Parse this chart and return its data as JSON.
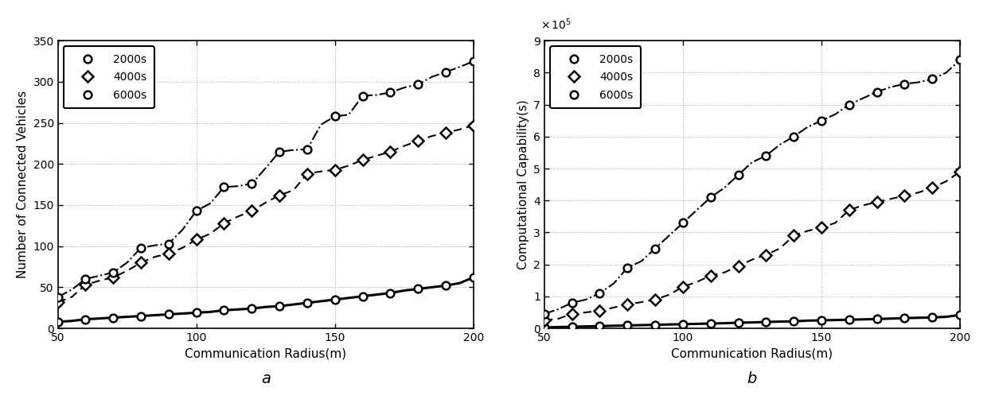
{
  "x_dense": [
    50,
    55,
    60,
    65,
    70,
    75,
    80,
    85,
    90,
    95,
    100,
    105,
    110,
    115,
    120,
    125,
    130,
    135,
    140,
    145,
    150,
    155,
    160,
    165,
    170,
    175,
    180,
    185,
    190,
    195,
    200
  ],
  "x_markers": [
    50,
    60,
    70,
    80,
    90,
    100,
    110,
    120,
    130,
    140,
    150,
    160,
    170,
    180,
    190,
    200
  ],
  "left_2000s_dense": [
    8,
    9,
    11,
    12,
    13,
    14,
    15,
    16,
    17,
    18,
    19,
    20,
    22,
    23,
    24,
    26,
    27,
    29,
    31,
    33,
    35,
    37,
    39,
    41,
    43,
    46,
    48,
    50,
    52,
    55,
    62
  ],
  "left_4000s_dense": [
    32,
    38,
    53,
    58,
    62,
    70,
    80,
    87,
    91,
    98,
    108,
    115,
    128,
    136,
    143,
    153,
    162,
    168,
    188,
    191,
    193,
    198,
    205,
    210,
    215,
    222,
    228,
    234,
    238,
    242,
    247
  ],
  "left_6000s_dense": [
    38,
    47,
    60,
    64,
    68,
    80,
    98,
    101,
    103,
    120,
    143,
    152,
    172,
    173,
    176,
    195,
    215,
    217,
    218,
    248,
    258,
    260,
    283,
    284,
    287,
    293,
    297,
    306,
    312,
    318,
    325
  ],
  "left_2000s_mk": [
    8,
    11,
    13,
    15,
    17,
    19,
    22,
    24,
    27,
    31,
    35,
    39,
    43,
    48,
    52,
    62
  ],
  "left_4000s_mk": [
    32,
    53,
    62,
    80,
    91,
    108,
    128,
    143,
    162,
    188,
    193,
    205,
    215,
    228,
    238,
    247
  ],
  "left_6000s_mk": [
    38,
    60,
    68,
    98,
    103,
    143,
    172,
    176,
    215,
    218,
    258,
    283,
    287,
    297,
    312,
    325
  ],
  "right_2000s_dense": [
    3000,
    4000,
    5000,
    6000,
    7000,
    8000,
    9000,
    10000,
    11000,
    12000,
    13000,
    14000,
    15000,
    16000,
    17500,
    18500,
    20000,
    21000,
    22000,
    24000,
    25000,
    26000,
    27000,
    28000,
    29000,
    30500,
    32000,
    33000,
    34000,
    36000,
    42000
  ],
  "right_4000s_dense": [
    25000,
    30000,
    45000,
    50000,
    55000,
    65000,
    75000,
    82000,
    90000,
    105000,
    130000,
    145000,
    165000,
    175000,
    195000,
    215000,
    230000,
    250000,
    290000,
    305000,
    315000,
    330000,
    370000,
    385000,
    395000,
    405000,
    415000,
    425000,
    440000,
    460000,
    490000
  ],
  "right_6000s_dense": [
    45000,
    60000,
    80000,
    90000,
    110000,
    140000,
    190000,
    210000,
    250000,
    290000,
    330000,
    370000,
    410000,
    440000,
    480000,
    520000,
    540000,
    575000,
    600000,
    630000,
    650000,
    670000,
    700000,
    720000,
    740000,
    755000,
    765000,
    770000,
    780000,
    800000,
    840000
  ],
  "right_2000s_mk": [
    3000,
    5000,
    7000,
    9000,
    11000,
    13000,
    15000,
    17500,
    20000,
    22000,
    25000,
    27000,
    29000,
    32000,
    34000,
    42000
  ],
  "right_4000s_mk": [
    25000,
    45000,
    55000,
    75000,
    90000,
    130000,
    165000,
    195000,
    230000,
    290000,
    315000,
    370000,
    395000,
    415000,
    440000,
    490000
  ],
  "right_6000s_mk": [
    45000,
    80000,
    110000,
    190000,
    250000,
    330000,
    410000,
    480000,
    540000,
    600000,
    650000,
    700000,
    740000,
    765000,
    780000,
    840000
  ],
  "xlabel": "Communication Radius(m)",
  "left_ylabel": "Number of Connected Vehicles",
  "right_ylabel": "Computational Capability(s)",
  "label_2000s": "2000s",
  "label_4000s": "4000s",
  "label_6000s": "6000s",
  "label_a": "a",
  "label_b": "b",
  "xlim": [
    50,
    200
  ],
  "left_ylim": [
    0,
    350
  ],
  "right_ylim": [
    0,
    900000
  ],
  "left_yticks": [
    0,
    50,
    100,
    150,
    200,
    250,
    300,
    350
  ],
  "right_yticks": [
    0,
    100000,
    200000,
    300000,
    400000,
    500000,
    600000,
    700000,
    800000,
    900000
  ],
  "xticks": [
    50,
    100,
    150,
    200
  ],
  "bg_color": "#ffffff"
}
